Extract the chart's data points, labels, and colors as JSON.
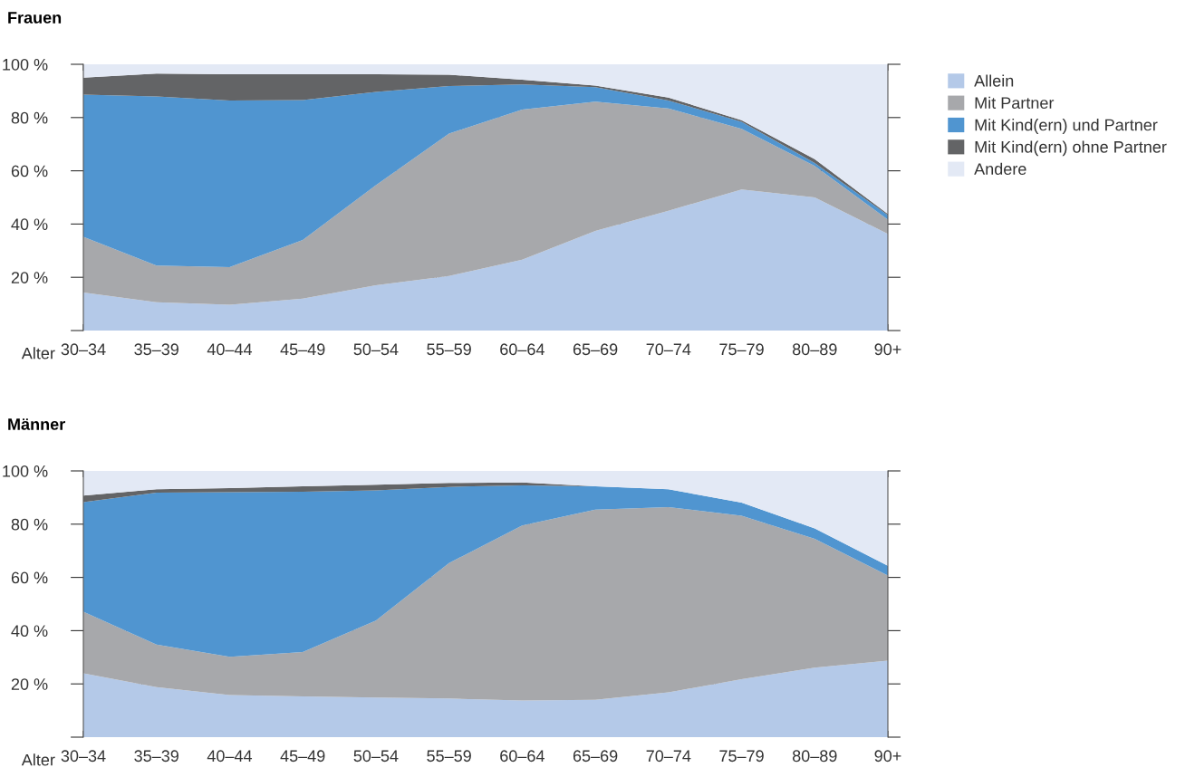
{
  "chart_data": [
    {
      "type": "area",
      "title": "Frauen",
      "xlabel": "Alter",
      "stacked": true,
      "legend": "top right",
      "grid": "y",
      "categories": [
        "30–34",
        "35–39",
        "40–44",
        "45–49",
        "50–54",
        "55–59",
        "60–64",
        "65–69",
        "70–74",
        "75–79",
        "80–89",
        "90+"
      ],
      "ylim": [
        0,
        100
      ],
      "yticks": [
        {
          "value": 0,
          "label": null
        },
        {
          "value": 20,
          "label": "20 %"
        },
        {
          "value": 40,
          "label": "40 %"
        },
        {
          "value": 60,
          "label": "60 %"
        },
        {
          "value": 80,
          "label": "80 %"
        },
        {
          "value": 100,
          "label": "100 %"
        }
      ],
      "series": [
        {
          "name": "Allein",
          "color": "#b4c9e8",
          "values": [
            14.3,
            10.6,
            9.7,
            12,
            17,
            20.5,
            26.6,
            37.4,
            45,
            53,
            50,
            36.3
          ]
        },
        {
          "name": "Mit Partner",
          "color": "#a7a8ab",
          "values": [
            20.9,
            13.8,
            14.1,
            22,
            37.6,
            53.5,
            56.4,
            48.6,
            38.4,
            22.8,
            11.8,
            5.4
          ]
        },
        {
          "name": "Mit Kind(ern) und Partner",
          "color": "#5095d0",
          "values": [
            53.4,
            63.5,
            62.6,
            52.6,
            35,
            17.8,
            9.4,
            5.4,
            3,
            2.6,
            1.1,
            1.7
          ]
        },
        {
          "name": "Mit Kind(ern) ohne Partner",
          "color": "#636466",
          "values": [
            6.4,
            8.6,
            9.9,
            9.7,
            6.7,
            4.3,
            1.8,
            0.6,
            1.1,
            0.6,
            1.5,
            0.4
          ]
        },
        {
          "name": "Andere",
          "color": "#e3e9f5",
          "values": [
            5,
            3.5,
            3.7,
            3.7,
            3.7,
            3.9,
            5.8,
            8,
            12.5,
            21,
            35.6,
            56.2
          ]
        }
      ]
    },
    {
      "type": "area",
      "title": "Männer",
      "xlabel": "Alter",
      "stacked": true,
      "grid": "y",
      "categories": [
        "30–34",
        "35–39",
        "40–44",
        "45–49",
        "50–54",
        "55–59",
        "60–64",
        "65–69",
        "70–74",
        "75–79",
        "80–89",
        "90+"
      ],
      "ylim": [
        0,
        100
      ],
      "yticks": [
        {
          "value": 0,
          "label": null
        },
        {
          "value": 20,
          "label": "20 %"
        },
        {
          "value": 40,
          "label": "40 %"
        },
        {
          "value": 60,
          "label": "60 %"
        },
        {
          "value": 80,
          "label": "80 %"
        },
        {
          "value": 100,
          "label": "100 %"
        }
      ],
      "series": [
        {
          "color": "#b4c9e8",
          "values": [
            24,
            18.8,
            15.8,
            15.3,
            14.9,
            14.5,
            13.8,
            14,
            16.8,
            21.8,
            26.1,
            28.7
          ]
        },
        {
          "color": "#a7a8ab",
          "values": [
            23.1,
            16,
            14.4,
            16.7,
            28.9,
            50.9,
            65.7,
            71.5,
            69.6,
            61.4,
            48.4,
            32
          ]
        },
        {
          "color": "#5095d0",
          "values": [
            41.2,
            57,
            61.8,
            60.2,
            48.9,
            28.6,
            15.1,
            8.7,
            6.7,
            4.9,
            3.9,
            3.7
          ]
        },
        {
          "color": "#636466",
          "values": [
            2.4,
            1.3,
            1.5,
            2,
            2.1,
            1.5,
            1.1,
            0,
            0,
            0,
            0,
            0
          ]
        },
        {
          "color": "#e3e9f5",
          "values": [
            9.3,
            6.9,
            6.5,
            5.8,
            5.2,
            4.5,
            4.3,
            5.8,
            6.9,
            11.9,
            21.6,
            35.6
          ]
        }
      ]
    }
  ]
}
